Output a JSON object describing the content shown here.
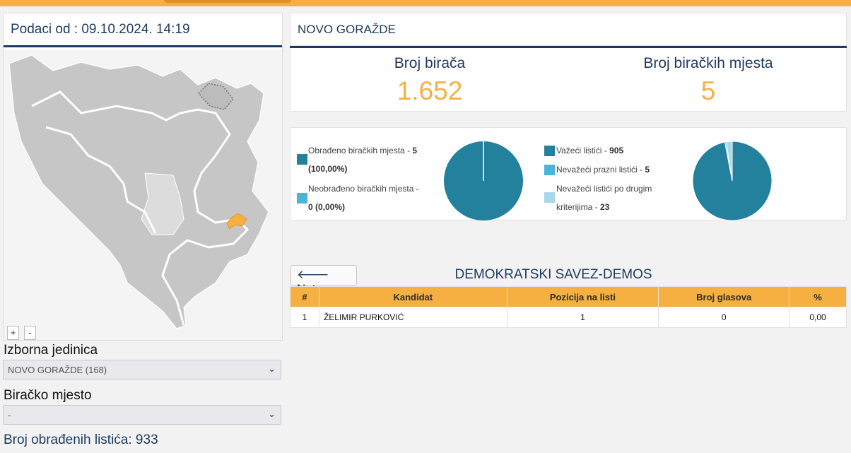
{
  "map_panel": {
    "header": "Podaci od : 09.10.2024. 14:19",
    "zoom_in": "+",
    "zoom_out": "-"
  },
  "filters": {
    "unit_label": "Izborna jedinica",
    "unit_value": "NOVO GORAŽDE (168)",
    "station_label": "Biračko mjesto",
    "station_value": "-"
  },
  "processed_ballots": "Broj obrađenih listića: 933",
  "municipality": "NOVO GORAŽDE",
  "stats": {
    "voters_label": "Broj birača",
    "voters_value": "1.652",
    "stations_label": "Broj biračkih mjesta",
    "stations_value": "5"
  },
  "legend_left": [
    {
      "text": "Obrađeno biračkih mjesta - ",
      "value": "5",
      "line2": "(100,00%)",
      "color": "#23819e"
    },
    {
      "text": "Neobrađeno biračkih mjesta - ",
      "value": "",
      "line2": "0 (0,00%)",
      "color": "#4ab5d8"
    }
  ],
  "legend_right": [
    {
      "text": "Važeći listići - ",
      "value": "905",
      "color": "#23819e"
    },
    {
      "text": "Nevažeći prazni listići - ",
      "value": "5",
      "color": "#4ab5d8"
    },
    {
      "text": "Nevažeći listići po drugim",
      "line2_text": "kriterijima - ",
      "value": "23",
      "color": "#a8d9ea"
    }
  ],
  "chart_data": [
    {
      "type": "pie",
      "slices": [
        {
          "label": "Obrađeno biračkih mjesta",
          "value": 5,
          "color": "#23819e"
        },
        {
          "label": "Neobrađeno biračkih mjesta",
          "value": 0,
          "color": "#4ab5d8"
        }
      ]
    },
    {
      "type": "pie",
      "slices": [
        {
          "label": "Važeći listići",
          "value": 905,
          "color": "#23819e"
        },
        {
          "label": "Nevažeći prazni listići",
          "value": 5,
          "color": "#4ab5d8"
        },
        {
          "label": "Nevažeći listići po drugim kriterijima",
          "value": 23,
          "color": "#a8d9ea"
        }
      ]
    }
  ],
  "back_button": "Natrag",
  "party": "DEMOKRATSKI SAVEZ-DEMOS",
  "table": {
    "headers": [
      "#",
      "Kandidat",
      "Pozicija na listi",
      "Broj glasova",
      "%"
    ],
    "rows": [
      [
        "1",
        "ŽELIMIR PURKOVIĆ",
        "1",
        "0",
        "0,00"
      ]
    ]
  },
  "colors": {
    "accent": "#f6b042",
    "navy": "#1e3a5f",
    "teal": "#23819e"
  }
}
